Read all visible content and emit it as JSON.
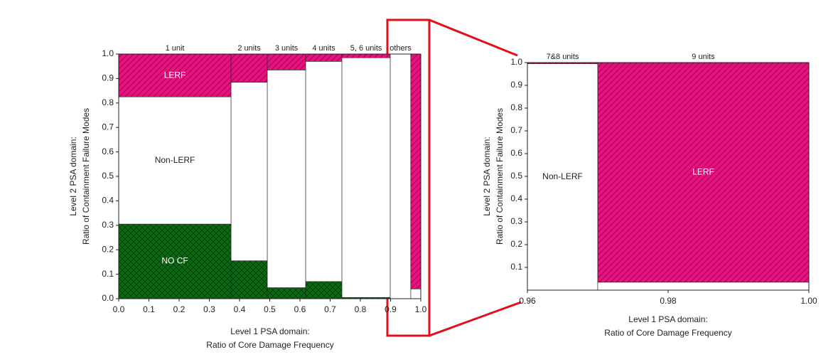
{
  "chart_data": [
    {
      "type": "mosaic",
      "categories": [
        "1 unit",
        "2 units",
        "3 units",
        "4 units",
        "5, 6 units",
        "others",
        null
      ],
      "x_edges": [
        0,
        0.372,
        0.492,
        0.619,
        0.739,
        0.899,
        0.967,
        1.0
      ],
      "series": [
        {
          "name": "NO CF",
          "color": "#0b6b12",
          "hatch": "cross",
          "values": [
            0.305,
            0.155,
            0.045,
            0.07,
            0.005,
            0,
            0
          ]
        },
        {
          "name": "Non-LERF",
          "color": "#ffffff",
          "hatch": "none",
          "values": [
            0.52,
            0.73,
            0.89,
            0.9,
            0.98,
            1.0,
            0.04
          ]
        },
        {
          "name": "LERF",
          "color": "#e6127e",
          "hatch": "diagonal",
          "values": [
            0.175,
            0.115,
            0.065,
            0.03,
            0.015,
            0,
            0.96
          ]
        }
      ],
      "xlim": [
        0,
        1.0
      ],
      "ylim": [
        0,
        1.0
      ],
      "xticks": [
        {
          "value": 0,
          "label": "0.0"
        },
        0.1,
        0.2,
        0.3,
        0.4,
        0.5,
        0.6,
        0.7,
        0.8,
        0.9,
        {
          "value": 1.0,
          "label": "1.0"
        }
      ],
      "yticks": [
        {
          "value": 0,
          "label": "0.0"
        },
        0.1,
        0.2,
        0.3,
        0.4,
        0.5,
        0.6,
        0.7,
        0.8,
        0.9,
        {
          "value": 1.0,
          "label": "1.0"
        }
      ],
      "xlabel": [
        "Level 1 PSA domain:",
        "Ratio of Core Damage Frequency"
      ],
      "ylabel": [
        "Level 2 PSA domain:",
        "Ratio of Containment Failure Modes"
      ]
    },
    {
      "type": "mosaic",
      "categories": [
        "7&8 units",
        "9 units"
      ],
      "x_edges": [
        0.96,
        0.97,
        1.0
      ],
      "series": [
        {
          "name": "Non-LERF",
          "color": "#ffffff",
          "hatch": "none",
          "values": [
            0.995,
            0.035
          ]
        },
        {
          "name": "LERF",
          "color": "#e6127e",
          "hatch": "diagonal",
          "values": [
            0.005,
            0.965
          ]
        }
      ],
      "xlim": [
        0.96,
        1.0
      ],
      "ylim": [
        0,
        1.0
      ],
      "xticks": [
        0.96,
        0.98,
        {
          "value": 1.0,
          "label": "1.00"
        }
      ],
      "yticks": [
        0.1,
        0.2,
        0.3,
        0.4,
        0.5,
        0.6,
        0.7,
        0.8,
        0.9,
        {
          "value": 1.0,
          "label": "1.0"
        }
      ],
      "xlabel": [
        "Level 1 PSA domain:",
        "Ratio of Core Damage Frequency"
      ],
      "ylabel": [
        "Level 2 PSA domain:",
        "Ratio of Containment Failure Modes"
      ]
    }
  ]
}
